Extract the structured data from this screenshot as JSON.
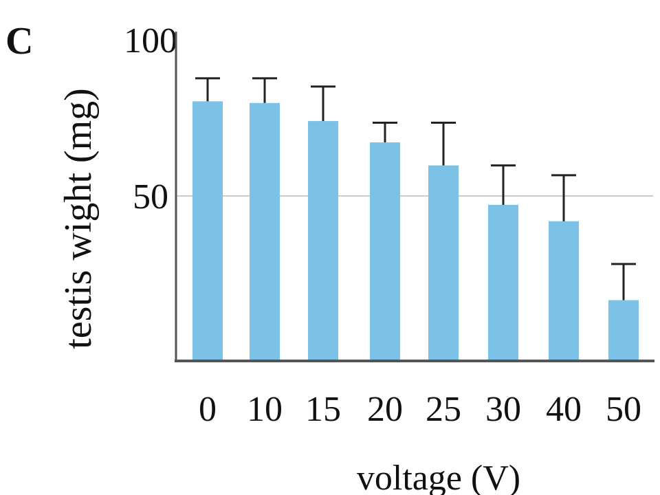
{
  "panel_label": "C",
  "chart_data": {
    "type": "bar",
    "categories": [
      "0",
      "10",
      "15",
      "20",
      "25",
      "30",
      "40",
      "50"
    ],
    "values": [
      79,
      78.5,
      73,
      66.5,
      59.5,
      47.5,
      42.5,
      18.5
    ],
    "errors": [
      7,
      7.5,
      10.5,
      6,
      13,
      12,
      14,
      11
    ],
    "ylim": [
      0,
      100
    ],
    "yticks": [
      "50",
      "100"
    ],
    "xlabel": "voltage (V)",
    "ylabel": "testis wight (mg)",
    "grid": "horizontal line at 50",
    "bar_color": "#7cc2e6",
    "error_color": "#222222",
    "axis_color": "#555555"
  }
}
